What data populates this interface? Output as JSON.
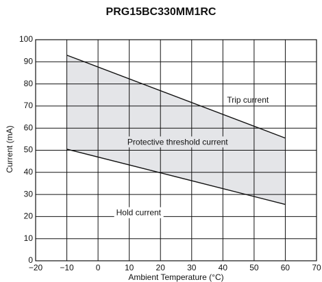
{
  "chart_data": {
    "type": "area",
    "title": "PRG15BC330MM1RC",
    "xlabel": "Ambient Temperature (°C)",
    "ylabel": "Current (mA)",
    "xlim": [
      -20,
      70
    ],
    "ylim": [
      0,
      100
    ],
    "x_ticks": [
      -20,
      -10,
      0,
      10,
      20,
      30,
      40,
      50,
      60,
      70
    ],
    "y_ticks": [
      0,
      10,
      20,
      30,
      40,
      50,
      60,
      70,
      80,
      90,
      100
    ],
    "x_tick_labels": [
      "−20",
      "−10",
      "0",
      "10",
      "20",
      "30",
      "40",
      "50",
      "60",
      "70"
    ],
    "y_tick_labels": [
      "0",
      "10",
      "20",
      "30",
      "40",
      "50",
      "60",
      "70",
      "80",
      "90",
      "100"
    ],
    "grid": true,
    "legend": "none",
    "series": [
      {
        "name": "Trip current",
        "x": [
          -10,
          60
        ],
        "values": [
          93,
          55.5
        ]
      },
      {
        "name": "Hold current",
        "x": [
          -10,
          60
        ],
        "values": [
          50.5,
          25.5
        ]
      }
    ],
    "band_label": "Protective threshold current",
    "annotations": [
      {
        "key": "trip",
        "text": "Trip current",
        "x": 48,
        "y": 72.5
      },
      {
        "key": "band",
        "text": "Protective threshold current",
        "x": 25.5,
        "y": 53.5
      },
      {
        "key": "hold",
        "text": "Hold current",
        "x": 13,
        "y": 21.5
      }
    ],
    "colors": {
      "band_fill": "#e4e5e8",
      "line": "#111111",
      "grid": "#111111"
    }
  }
}
